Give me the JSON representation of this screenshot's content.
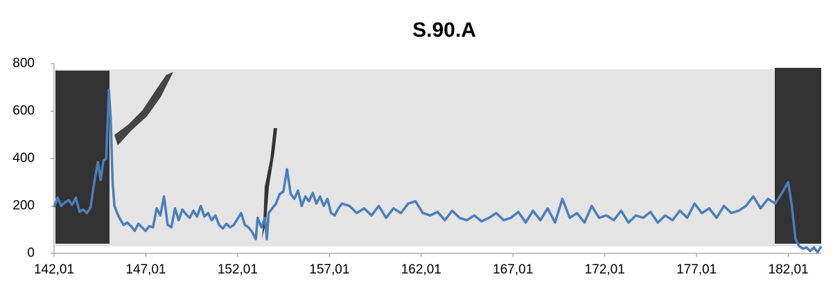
{
  "chart_data": {
    "type": "line",
    "title": "S.90.A",
    "color": "#4a7ebb",
    "x": [
      142.01,
      142.2,
      142.4,
      142.6,
      142.8,
      143.0,
      143.2,
      143.4,
      143.6,
      143.8,
      144.0,
      144.2,
      144.4,
      144.55,
      144.7,
      144.85,
      145.0,
      145.1,
      145.2,
      145.3,
      145.45,
      145.6,
      145.8,
      146.0,
      146.2,
      146.4,
      146.6,
      146.8,
      147.0,
      147.2,
      147.4,
      147.6,
      147.8,
      148.0,
      148.2,
      148.4,
      148.6,
      148.8,
      149.0,
      149.2,
      149.4,
      149.6,
      149.8,
      150.0,
      150.2,
      150.4,
      150.6,
      150.8,
      151.0,
      151.2,
      151.4,
      151.6,
      151.8,
      152.0,
      152.2,
      152.4,
      152.6,
      152.8,
      153.0,
      153.1,
      153.3,
      153.5,
      153.6,
      153.7,
      153.9,
      154.1,
      154.3,
      154.5,
      154.7,
      154.9,
      155.1,
      155.3,
      155.5,
      155.7,
      155.9,
      156.1,
      156.3,
      156.5,
      156.7,
      156.9,
      157.1,
      157.3,
      157.5,
      157.7,
      158.1,
      158.5,
      158.9,
      159.3,
      159.7,
      160.1,
      160.5,
      160.9,
      161.3,
      161.7,
      162.1,
      162.5,
      162.9,
      163.3,
      163.7,
      164.1,
      164.5,
      164.9,
      165.3,
      165.7,
      166.1,
      166.5,
      166.9,
      167.3,
      167.7,
      168.1,
      168.5,
      168.9,
      169.3,
      169.7,
      170.1,
      170.5,
      170.9,
      171.3,
      171.7,
      172.1,
      172.5,
      172.9,
      173.3,
      173.7,
      174.1,
      174.5,
      174.9,
      175.3,
      175.7,
      176.1,
      176.5,
      176.9,
      177.3,
      177.7,
      178.1,
      178.5,
      178.9,
      179.3,
      179.7,
      180.1,
      180.5,
      180.9,
      181.3,
      181.7,
      182.0,
      182.2,
      182.4,
      182.6,
      182.8,
      183.0,
      183.2,
      183.4,
      183.6,
      183.8
    ],
    "values": [
      195,
      235,
      200,
      215,
      225,
      205,
      235,
      175,
      185,
      170,
      195,
      300,
      385,
      310,
      390,
      400,
      690,
      560,
      300,
      200,
      170,
      145,
      120,
      130,
      115,
      95,
      125,
      110,
      95,
      115,
      110,
      190,
      160,
      240,
      120,
      110,
      190,
      140,
      185,
      165,
      150,
      180,
      155,
      200,
      155,
      170,
      140,
      160,
      120,
      105,
      125,
      110,
      120,
      145,
      170,
      120,
      110,
      90,
      60,
      150,
      110,
      150,
      60,
      170,
      190,
      210,
      250,
      260,
      355,
      250,
      230,
      265,
      200,
      240,
      220,
      255,
      210,
      240,
      200,
      230,
      170,
      160,
      190,
      210,
      200,
      170,
      190,
      160,
      200,
      150,
      190,
      170,
      210,
      220,
      170,
      160,
      175,
      140,
      180,
      150,
      140,
      160,
      135,
      150,
      170,
      140,
      150,
      175,
      130,
      180,
      140,
      190,
      130,
      230,
      150,
      170,
      130,
      200,
      150,
      160,
      140,
      180,
      130,
      160,
      150,
      175,
      130,
      160,
      140,
      180,
      150,
      210,
      170,
      190,
      150,
      200,
      170,
      180,
      200,
      240,
      190,
      230,
      210,
      260,
      300,
      200,
      60,
      30,
      20,
      25,
      10,
      25,
      5,
      30
    ],
    "xlim": [
      142.01,
      183.8
    ],
    "xticks": [
      {
        "value": 142.01,
        "label": "142,01"
      },
      {
        "value": 147.01,
        "label": "147,01"
      },
      {
        "value": 152.01,
        "label": "152,01"
      },
      {
        "value": 157.01,
        "label": "157,01"
      },
      {
        "value": 162.01,
        "label": "162,01"
      },
      {
        "value": 167.01,
        "label": "167,01"
      },
      {
        "value": 172.01,
        "label": "172,01"
      },
      {
        "value": 177.01,
        "label": "177,01"
      },
      {
        "value": 182.01,
        "label": "182,01"
      }
    ],
    "ylim": [
      0,
      800
    ],
    "yticks": [
      0,
      200,
      400,
      600,
      800
    ]
  }
}
